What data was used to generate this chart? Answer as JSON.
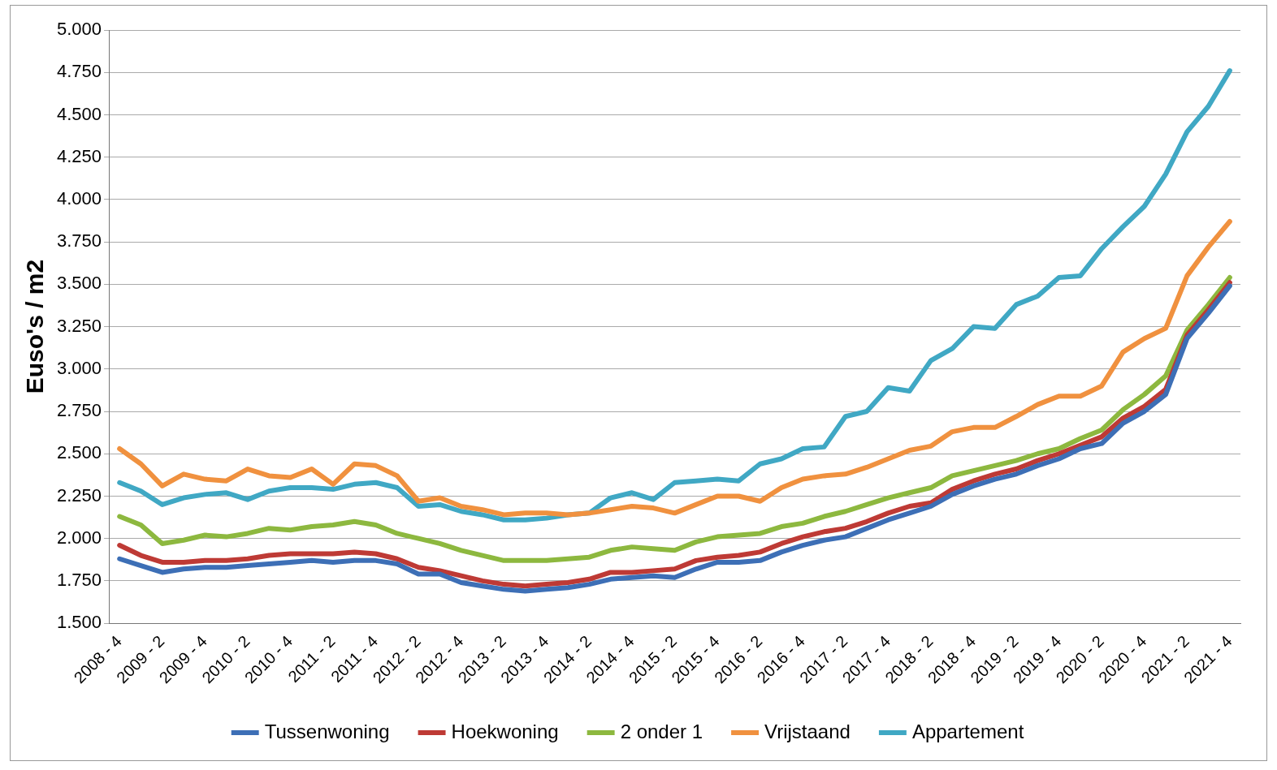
{
  "chart_data": {
    "type": "line",
    "ylabel": "Euso's / m2",
    "categories": [
      "2008 - 4",
      null,
      "2009 - 2",
      null,
      "2009 - 4",
      null,
      "2010 - 2",
      null,
      "2010 - 4",
      null,
      "2011 - 2",
      null,
      "2011 - 4",
      null,
      "2012 - 2",
      null,
      "2012 - 4",
      null,
      "2013 - 2",
      null,
      "2013 - 4",
      null,
      "2014 - 2",
      null,
      "2014 - 4",
      null,
      "2015 - 2",
      null,
      "2015 - 4",
      null,
      "2016 - 2",
      null,
      "2016 - 4",
      null,
      "2017 - 2",
      null,
      "2017 - 4",
      null,
      "2018 - 2",
      null,
      "2018 - 4",
      null,
      "2019 - 2",
      null,
      "2019 - 4",
      null,
      "2020 - 2",
      null,
      "2020 - 4",
      null,
      "2021 - 2",
      null,
      "2021 - 4"
    ],
    "series": [
      {
        "name": "Tussenwoning",
        "color": "#3d6fb6",
        "values": [
          1880,
          1840,
          1800,
          1820,
          1830,
          1830,
          1840,
          1850,
          1860,
          1870,
          1860,
          1870,
          1870,
          1850,
          1790,
          1790,
          1740,
          1720,
          1700,
          1690,
          1700,
          1710,
          1730,
          1760,
          1770,
          1780,
          1770,
          1820,
          1860,
          1860,
          1870,
          1920,
          1960,
          1990,
          2010,
          2060,
          2110,
          2150,
          2190,
          2260,
          2310,
          2350,
          2380,
          2430,
          2470,
          2530,
          2560,
          2680,
          2750,
          2850,
          3180,
          3330,
          3490
        ]
      },
      {
        "name": "Hoekwoning",
        "color": "#be3a35",
        "values": [
          1960,
          1900,
          1860,
          1860,
          1870,
          1870,
          1880,
          1900,
          1910,
          1910,
          1910,
          1920,
          1910,
          1880,
          1830,
          1810,
          1780,
          1750,
          1730,
          1720,
          1730,
          1740,
          1760,
          1800,
          1800,
          1810,
          1820,
          1870,
          1890,
          1900,
          1920,
          1970,
          2010,
          2040,
          2060,
          2100,
          2150,
          2190,
          2210,
          2290,
          2340,
          2380,
          2410,
          2460,
          2500,
          2550,
          2600,
          2710,
          2780,
          2880,
          3200,
          3350,
          3510
        ]
      },
      {
        "name": "2 onder 1",
        "color": "#8db83f",
        "values": [
          2130,
          2080,
          1970,
          1990,
          2020,
          2010,
          2030,
          2060,
          2050,
          2070,
          2080,
          2100,
          2080,
          2030,
          2000,
          1970,
          1930,
          1900,
          1870,
          1870,
          1870,
          1880,
          1890,
          1930,
          1950,
          1940,
          1930,
          1980,
          2010,
          2020,
          2030,
          2070,
          2090,
          2130,
          2160,
          2200,
          2240,
          2270,
          2300,
          2370,
          2400,
          2430,
          2460,
          2500,
          2530,
          2590,
          2640,
          2760,
          2850,
          2960,
          3230,
          3380,
          3540
        ]
      },
      {
        "name": "Vrijstaand",
        "color": "#f0913f",
        "values": [
          2530,
          2440,
          2310,
          2380,
          2350,
          2340,
          2410,
          2370,
          2360,
          2410,
          2320,
          2440,
          2430,
          2370,
          2220,
          2240,
          2190,
          2170,
          2140,
          2150,
          2150,
          2140,
          2150,
          2170,
          2190,
          2180,
          2150,
          2200,
          2250,
          2250,
          2220,
          2300,
          2350,
          2370,
          2380,
          2420,
          2470,
          2520,
          2545,
          2630,
          2655,
          2655,
          2720,
          2790,
          2840,
          2840,
          2900,
          3100,
          3180,
          3240,
          3550,
          3720,
          3870
        ]
      },
      {
        "name": "Appartement",
        "color": "#40a8c4",
        "values": [
          2330,
          2280,
          2200,
          2240,
          2260,
          2270,
          2230,
          2280,
          2300,
          2300,
          2290,
          2320,
          2330,
          2300,
          2190,
          2200,
          2160,
          2140,
          2110,
          2110,
          2120,
          2140,
          2150,
          2240,
          2270,
          2230,
          2330,
          2340,
          2350,
          2340,
          2440,
          2470,
          2530,
          2540,
          2720,
          2750,
          2890,
          2870,
          3050,
          3120,
          3250,
          3240,
          3380,
          3430,
          3540,
          3550,
          3710,
          3840,
          3960,
          4150,
          4400,
          4550,
          4760
        ]
      }
    ],
    "ylim": [
      1500,
      5000
    ],
    "yticks": [
      {
        "value": 1500,
        "label": "1.500"
      },
      {
        "value": 1750,
        "label": "1.750"
      },
      {
        "value": 2000,
        "label": "2.000"
      },
      {
        "value": 2250,
        "label": "2.250"
      },
      {
        "value": 2500,
        "label": "2.500"
      },
      {
        "value": 2750,
        "label": "2.750"
      },
      {
        "value": 3000,
        "label": "3.000"
      },
      {
        "value": 3250,
        "label": "3.250"
      },
      {
        "value": 3500,
        "label": "3.500"
      },
      {
        "value": 3750,
        "label": "3.750"
      },
      {
        "value": 4000,
        "label": "4.000"
      },
      {
        "value": 4250,
        "label": "4.250"
      },
      {
        "value": 4500,
        "label": "4.500"
      },
      {
        "value": 4750,
        "label": "4.750"
      },
      {
        "value": 5000,
        "label": "5.000"
      }
    ],
    "grid": "y",
    "legend": "bottom",
    "marker": "none",
    "line_style": "solid"
  }
}
